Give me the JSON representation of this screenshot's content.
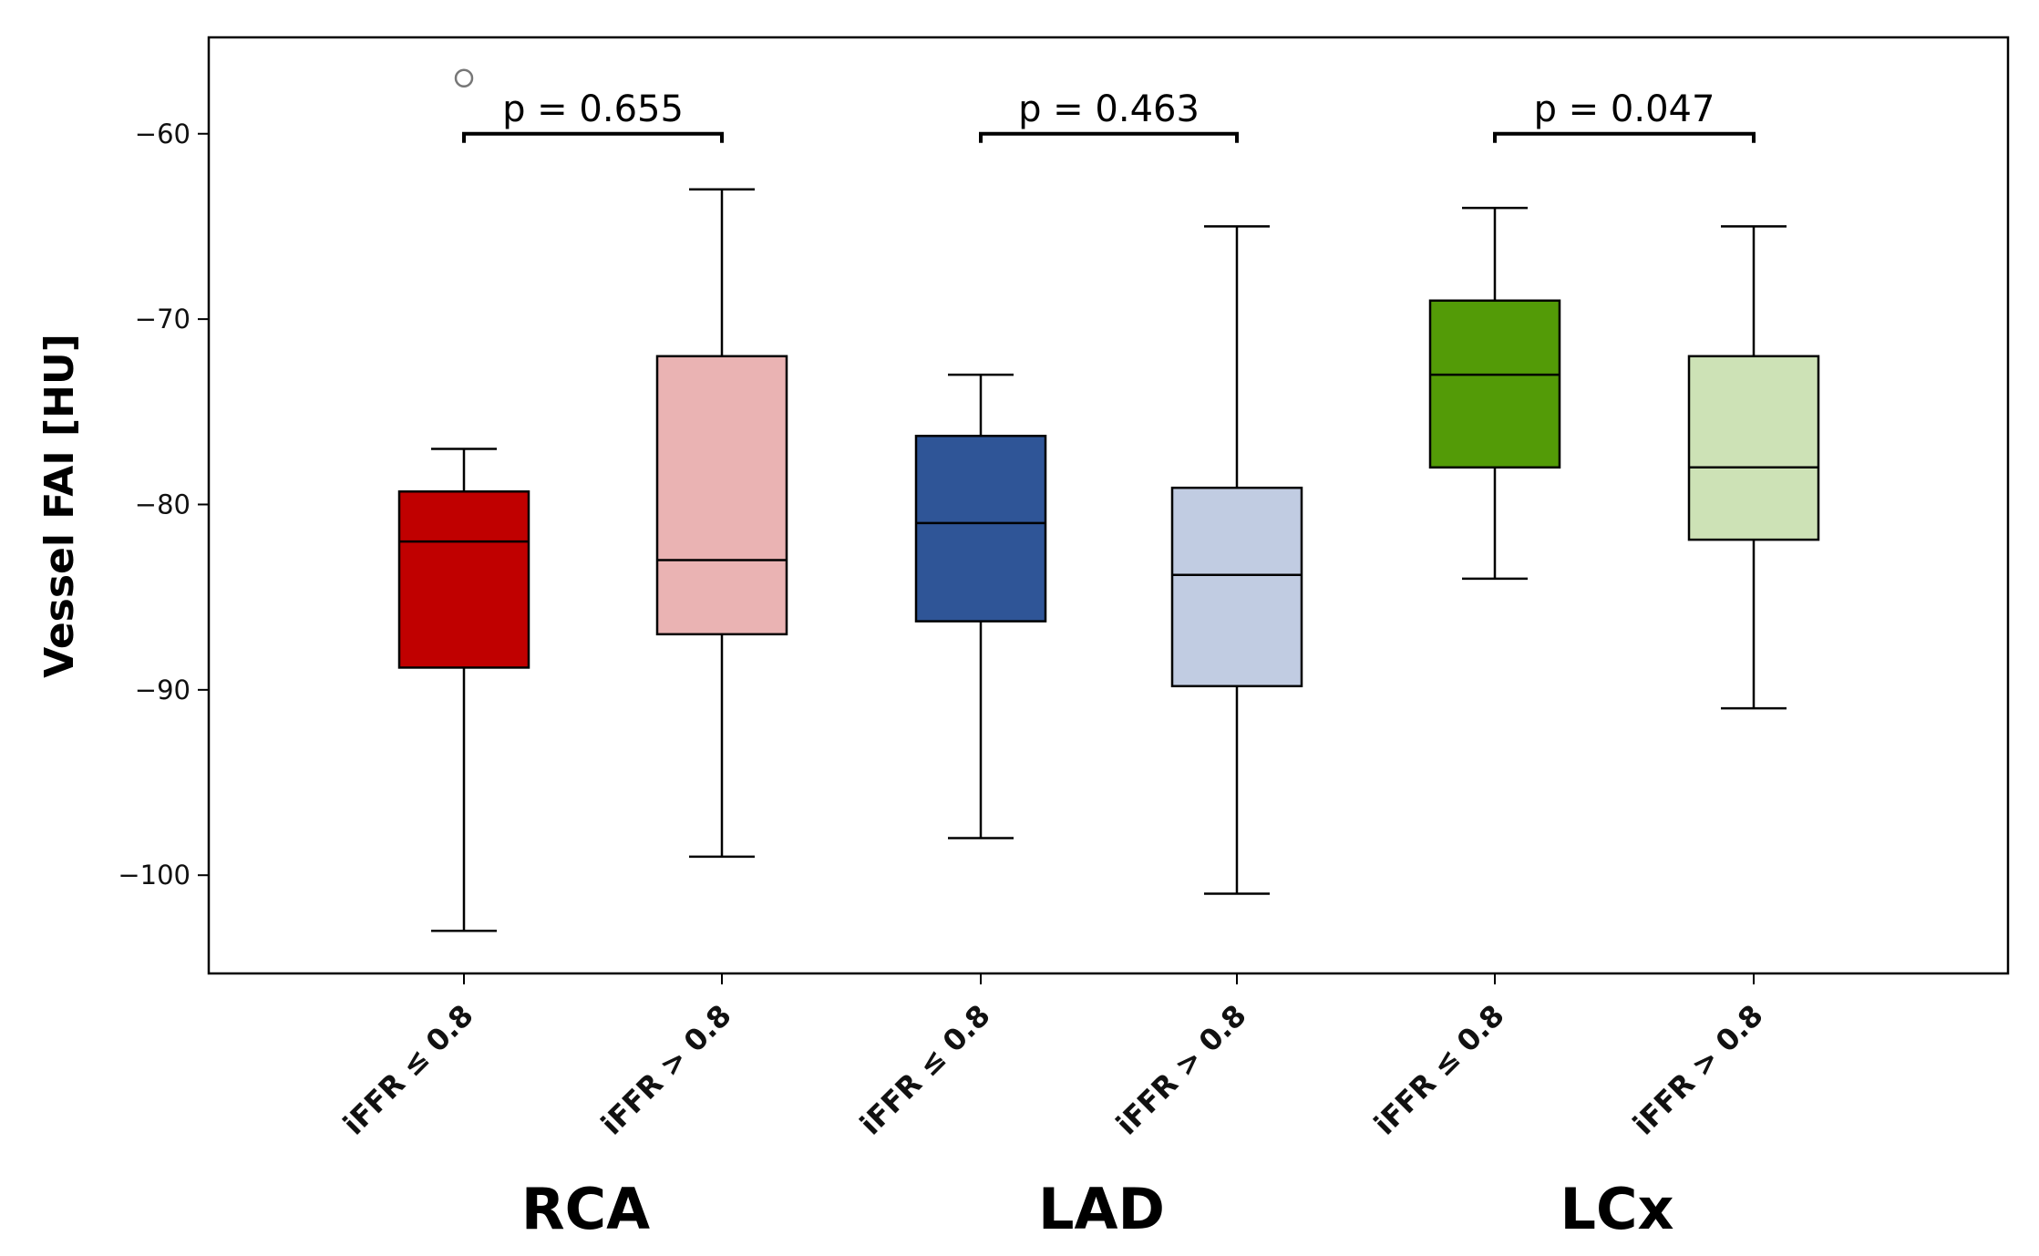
{
  "chart_data": {
    "type": "box",
    "title": "",
    "xlabel": "",
    "ylabel": "Vessel FAI [HU]",
    "ylim": [
      -105.3,
      -54.8
    ],
    "yticks": [
      -60,
      -70,
      -80,
      -90,
      -100
    ],
    "ytick_labels": [
      "−60",
      "−70",
      "−80",
      "−90",
      "−100"
    ],
    "grid": false,
    "categories": [
      "iFFR ≤ 0.8",
      "iFFR > 0.8",
      "iFFR ≤ 0.8",
      "iFFR > 0.8",
      "iFFR ≤ 0.8",
      "iFFR > 0.8"
    ],
    "groups": [
      {
        "label": "RCA",
        "indices": [
          0,
          1
        ],
        "p_value_text": "p = 0.655"
      },
      {
        "label": "LAD",
        "indices": [
          2,
          3
        ],
        "p_value_text": "p = 0.463"
      },
      {
        "label": "LCx",
        "indices": [
          4,
          5
        ],
        "p_value_text": "p = 0.047"
      }
    ],
    "boxes": [
      {
        "group": "RCA",
        "category": "iFFR ≤ 0.8",
        "whisker_low": -103,
        "q1": -88.8,
        "median": -82,
        "q3": -79.3,
        "whisker_high": -77,
        "outliers": [
          -57
        ],
        "color": "#c00000"
      },
      {
        "group": "RCA",
        "category": "iFFR > 0.8",
        "whisker_low": -99,
        "q1": -87,
        "median": -83,
        "q3": -72,
        "whisker_high": -63,
        "outliers": [],
        "color": "#eab3b3"
      },
      {
        "group": "LAD",
        "category": "iFFR ≤ 0.8",
        "whisker_low": -98,
        "q1": -86.3,
        "median": -81,
        "q3": -76.3,
        "whisker_high": -73,
        "outliers": [],
        "color": "#2f5597"
      },
      {
        "group": "LAD",
        "category": "iFFR > 0.8",
        "whisker_low": -101,
        "q1": -89.8,
        "median": -83.8,
        "q3": -79.1,
        "whisker_high": -65,
        "outliers": [],
        "color": "#c1cce2"
      },
      {
        "group": "LCx",
        "category": "iFFR ≤ 0.8",
        "whisker_low": -84,
        "q1": -78,
        "median": -73,
        "q3": -69,
        "whisker_high": -64,
        "outliers": [],
        "color": "#539b07"
      },
      {
        "group": "LCx",
        "category": "iFFR > 0.8",
        "whisker_low": -91,
        "q1": -81.9,
        "median": -78,
        "q3": -72,
        "whisker_high": -65,
        "outliers": [],
        "color": "#cde2b6"
      }
    ]
  }
}
